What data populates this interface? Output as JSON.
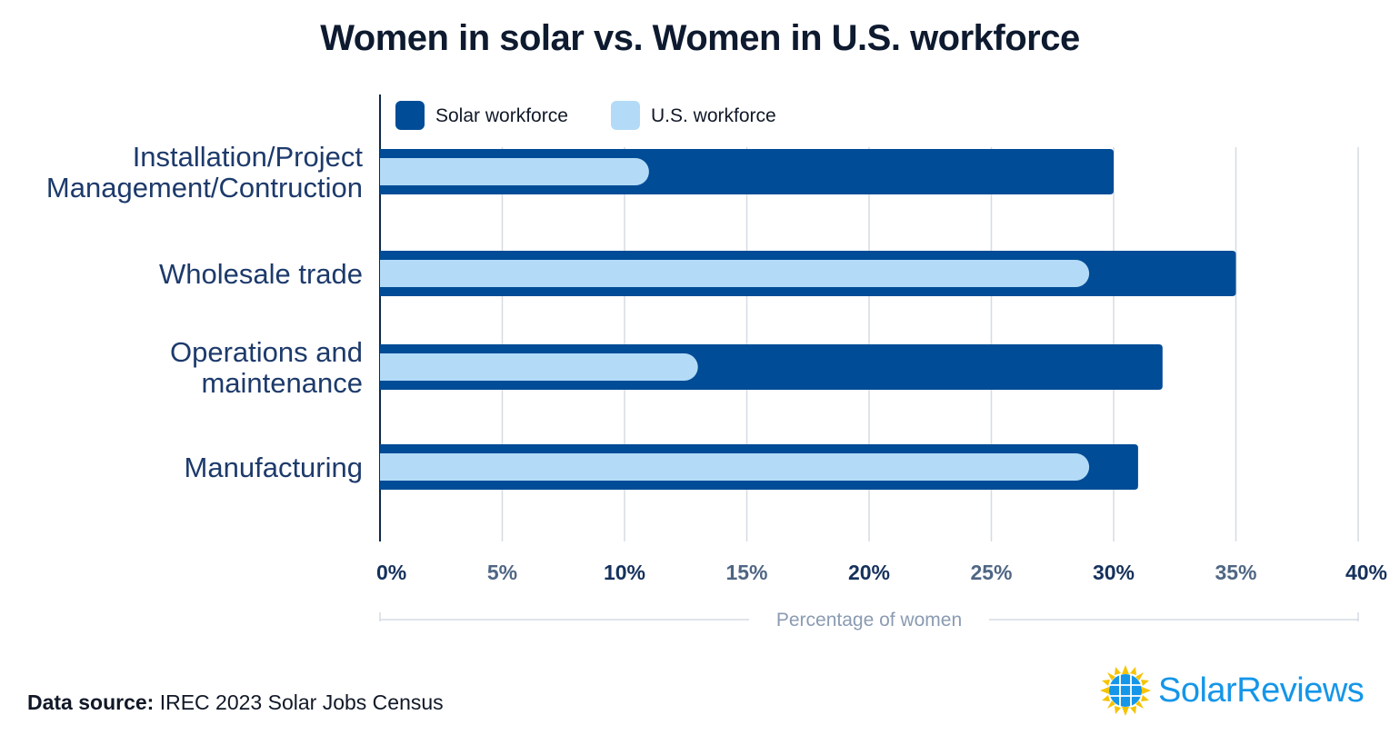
{
  "chart_data": {
    "type": "bar",
    "orientation": "horizontal",
    "title": "Women in solar vs. Women in U.S. workforce",
    "categories": [
      [
        "Installation/Project",
        "Management/Contruction"
      ],
      [
        "Wholesale trade"
      ],
      [
        "Operations and",
        "maintenance"
      ],
      [
        "Manufacturing"
      ]
    ],
    "series": [
      {
        "name": "Solar workforce",
        "color": "#004c97",
        "values": [
          30,
          35,
          32,
          31
        ]
      },
      {
        "name": "U.S. workforce",
        "color": "#b3dbf7",
        "values": [
          11,
          29,
          13,
          29
        ]
      }
    ],
    "xlabel": "Percentage of women",
    "ylabel": "",
    "xlim": [
      0,
      40
    ],
    "ticks": [
      0,
      5,
      10,
      15,
      20,
      25,
      30,
      35,
      40
    ],
    "tick_suffix": "%",
    "grid": true,
    "legend_position": "top-left"
  },
  "footer": {
    "source_label": "Data source:",
    "source_text": "IREC 2023 Solar Jobs Census",
    "brand_name": "SolarReviews",
    "brand_icon": "solar-panel-sun-icon"
  }
}
